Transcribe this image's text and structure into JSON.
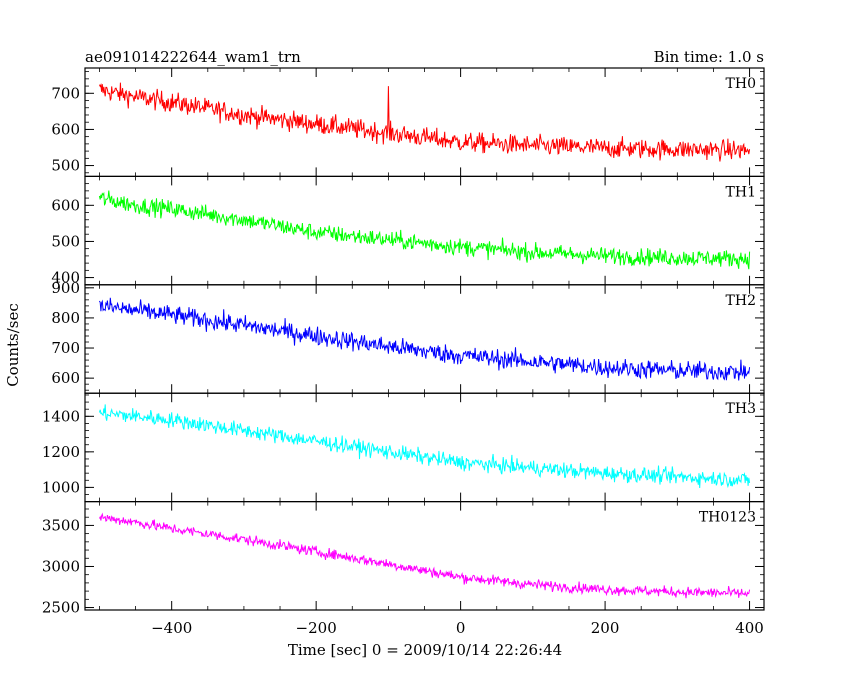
{
  "chart_data": {
    "type": "line",
    "title": "ae091014222644_wam1_trn",
    "bin_time": "Bin time: 1.0 s",
    "xlabel": "Time [sec] 0 = 2009/10/14 22:26:44",
    "ylabel": "Counts/sec",
    "xlim": [
      -520,
      420
    ],
    "xticks": [
      -400,
      -200,
      0,
      200,
      400
    ],
    "x_range": [
      -500,
      400
    ],
    "grid": false,
    "panels": [
      {
        "name": "TH0",
        "color": "#ff0000",
        "ylim": [
          470,
          770
        ],
        "yticks": [
          500,
          600,
          700
        ],
        "trend_x": [
          -500,
          -450,
          -400,
          -300,
          -200,
          -100,
          0,
          100,
          200,
          300,
          400
        ],
        "trend_y": [
          710,
          690,
          675,
          640,
          615,
          590,
          565,
          555,
          548,
          545,
          542
        ],
        "noise": 35,
        "spikes": [
          {
            "x": -100,
            "y": 720
          }
        ]
      },
      {
        "name": "TH1",
        "color": "#00ff00",
        "ylim": [
          380,
          680
        ],
        "yticks": [
          400,
          500,
          600
        ],
        "trend_x": [
          -500,
          -450,
          -400,
          -300,
          -200,
          -100,
          0,
          100,
          200,
          300,
          400
        ],
        "trend_y": [
          620,
          600,
          590,
          560,
          525,
          505,
          485,
          470,
          460,
          455,
          452
        ],
        "noise": 30,
        "spikes": []
      },
      {
        "name": "TH2",
        "color": "#0000ff",
        "ylim": [
          550,
          910
        ],
        "yticks": [
          600,
          700,
          800,
          900
        ],
        "trend_x": [
          -500,
          -450,
          -400,
          -300,
          -200,
          -100,
          0,
          100,
          200,
          300,
          400
        ],
        "trend_y": [
          840,
          825,
          810,
          775,
          740,
          705,
          675,
          655,
          635,
          625,
          620
        ],
        "noise": 40,
        "spikes": []
      },
      {
        "name": "TH3",
        "color": "#00ffff",
        "ylim": [
          920,
          1530
        ],
        "yticks": [
          1000,
          1200,
          1400
        ],
        "trend_x": [
          -500,
          -450,
          -400,
          -300,
          -200,
          -100,
          0,
          100,
          200,
          300,
          400
        ],
        "trend_y": [
          1420,
          1400,
          1380,
          1320,
          1260,
          1200,
          1140,
          1110,
          1080,
          1060,
          1040
        ],
        "noise": 55,
        "spikes": []
      },
      {
        "name": "TH0123",
        "color": "#ff00ff",
        "ylim": [
          2470,
          3790
        ],
        "yticks": [
          2500,
          3000,
          3500
        ],
        "trend_x": [
          -500,
          -450,
          -400,
          -300,
          -200,
          -100,
          0,
          100,
          200,
          300,
          400
        ],
        "trend_y": [
          3600,
          3540,
          3460,
          3330,
          3180,
          3030,
          2870,
          2780,
          2720,
          2690,
          2670
        ],
        "noise": 80,
        "spikes": []
      }
    ]
  }
}
